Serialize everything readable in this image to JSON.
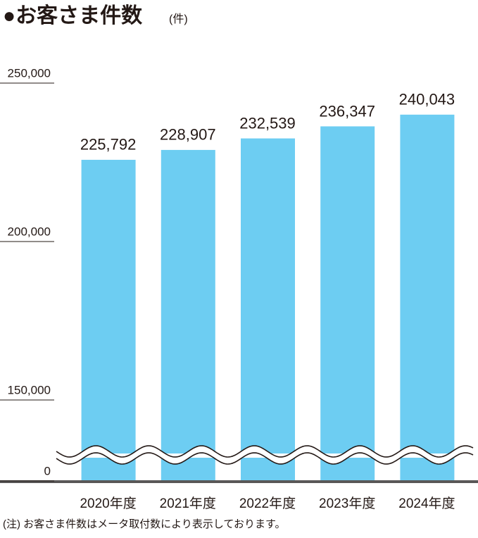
{
  "chart_data": {
    "type": "bar",
    "title": "●お客さま件数",
    "unit": "(件)",
    "categories": [
      "2020年度",
      "2021年度",
      "2022年度",
      "2023年度",
      "2024年度"
    ],
    "values": [
      225792,
      228907,
      232539,
      236347,
      240043
    ],
    "value_labels": [
      "225,792",
      "228,907",
      "232,539",
      "236,347",
      "240,043"
    ],
    "color": "#6dcdf2",
    "ylim": [
      0,
      250000
    ],
    "yticks": [
      0,
      {
        "value": 150000,
        "label": "150,000"
      },
      {
        "value": 200000,
        "label": "200,000"
      },
      {
        "value": 250000,
        "label": "250,000"
      }
    ],
    "axis_break": true,
    "note": "(注) お客さま件数はメータ取付数により表示しております。"
  }
}
